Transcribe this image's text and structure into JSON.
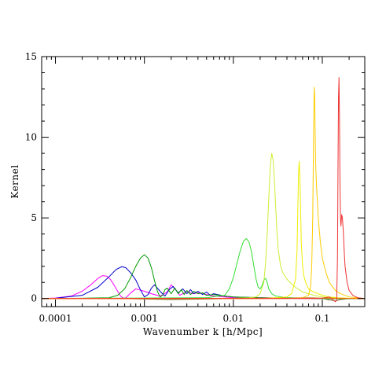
{
  "chart_data": {
    "type": "line",
    "xlabel": "Wavenumber k [h/Mpc]",
    "ylabel": "Kernel",
    "xscale": "log",
    "xlim": [
      7e-05,
      0.3
    ],
    "ylim": [
      -0.5,
      15
    ],
    "grid": false,
    "x_tick_labels": [
      {
        "value": 0.0001,
        "label": "0.0001"
      },
      {
        "value": 0.001,
        "label": "0.001"
      },
      {
        "value": 0.01,
        "label": "0.01"
      },
      {
        "value": 0.1,
        "label": "0.1"
      }
    ],
    "y_tick_labels": [
      {
        "value": 0,
        "label": "0"
      },
      {
        "value": 5,
        "label": "5"
      },
      {
        "value": 10,
        "label": "10"
      },
      {
        "value": 15,
        "label": "15"
      }
    ],
    "series": [
      {
        "color": "#ff00ff",
        "x": [
          7e-05,
          0.0001,
          0.00015,
          0.0002,
          0.00025,
          0.0003,
          0.00034,
          0.00038,
          0.00042,
          0.00046,
          0.0005,
          0.00054,
          0.00058,
          0.00062,
          0.0007,
          0.0008,
          0.001,
          0.0012,
          0.0015,
          0.0018,
          0.002,
          0.0022,
          0.0025,
          0.003,
          0.0035,
          0.004,
          0.005,
          0.006,
          0.008,
          0.01,
          0.02,
          0.05,
          0.1,
          0.3
        ],
        "y": [
          0,
          0.03,
          0.15,
          0.45,
          0.85,
          1.25,
          1.42,
          1.38,
          1.15,
          0.8,
          0.45,
          0.15,
          0.02,
          0.05,
          0.35,
          0.6,
          0.45,
          0.3,
          0.15,
          0.4,
          0.85,
          0.6,
          0.2,
          0.45,
          0.3,
          0.35,
          0.25,
          0.15,
          0.1,
          0.05,
          0.02,
          0.01,
          0,
          0
        ]
      },
      {
        "color": "#0000cc",
        "x": [
          7e-05,
          0.0001,
          0.0002,
          0.0003,
          0.0004,
          0.00048,
          0.00056,
          0.00062,
          0.0007,
          0.0008,
          0.0009,
          0.001,
          0.0011,
          0.0012,
          0.0013,
          0.0015,
          0.0017,
          0.0019,
          0.0021,
          0.0024,
          0.0027,
          0.003,
          0.0033,
          0.0036,
          0.004,
          0.0045,
          0.005,
          0.0055,
          0.006,
          0.007,
          0.008,
          0.01,
          0.02,
          0.05,
          0.1,
          0.3
        ],
        "y": [
          0,
          0.02,
          0.2,
          0.7,
          1.35,
          1.8,
          1.98,
          1.9,
          1.6,
          1.15,
          0.55,
          0.1,
          0.25,
          0.65,
          0.85,
          0.45,
          0.15,
          0.55,
          0.75,
          0.35,
          0.6,
          0.3,
          0.55,
          0.3,
          0.45,
          0.25,
          0.4,
          0.2,
          0.3,
          0.22,
          0.15,
          0.1,
          0.05,
          0.02,
          0,
          0
        ]
      },
      {
        "color": "#009900",
        "x": [
          7e-05,
          0.0002,
          0.0004,
          0.0005,
          0.0006,
          0.0007,
          0.0008,
          0.0009,
          0.001,
          0.0011,
          0.0012,
          0.0013,
          0.0014,
          0.0015,
          0.0016,
          0.0017,
          0.0018,
          0.002,
          0.0022,
          0.0024,
          0.0026,
          0.0028,
          0.003,
          0.0033,
          0.0036,
          0.004,
          0.0045,
          0.005,
          0.006,
          0.008,
          0.01,
          0.02,
          0.05,
          0.1,
          0.3
        ],
        "y": [
          0,
          0.02,
          0.05,
          0.2,
          0.6,
          1.3,
          2.0,
          2.5,
          2.72,
          2.5,
          1.9,
          1.1,
          0.45,
          0.1,
          0.2,
          0.55,
          0.65,
          0.3,
          0.65,
          0.3,
          0.55,
          0.25,
          0.5,
          0.25,
          0.45,
          0.3,
          0.35,
          0.2,
          0.25,
          0.15,
          0.1,
          0.05,
          0.02,
          0,
          0
        ]
      },
      {
        "color": "#6a6a2a",
        "x": [
          7e-05,
          0.0005,
          0.001,
          0.0015,
          0.002,
          0.003,
          0.005,
          0.01,
          0.02,
          0.04,
          0.08,
          0.1,
          0.12,
          0.14,
          0.16,
          0.2,
          0.3
        ],
        "y": [
          0,
          0,
          -0.03,
          -0.05,
          -0.06,
          -0.05,
          -0.03,
          0,
          0.03,
          0.05,
          0.04,
          0,
          -0.08,
          -0.15,
          -0.06,
          0,
          0
        ]
      },
      {
        "color": "#33dd33",
        "x": [
          7e-05,
          0.005,
          0.008,
          0.009,
          0.01,
          0.011,
          0.012,
          0.013,
          0.014,
          0.015,
          0.016,
          0.017,
          0.018,
          0.019,
          0.02,
          0.021,
          0.022,
          0.023,
          0.024,
          0.025,
          0.027,
          0.03,
          0.035,
          0.04,
          0.05,
          0.07,
          0.1,
          0.3
        ],
        "y": [
          0,
          0.05,
          0.2,
          0.6,
          1.3,
          2.2,
          3.0,
          3.55,
          3.72,
          3.5,
          2.9,
          2.0,
          1.2,
          0.7,
          0.6,
          0.8,
          1.15,
          1.25,
          1.0,
          0.6,
          0.3,
          0.15,
          0.1,
          0.05,
          0.03,
          0.01,
          0,
          0
        ]
      },
      {
        "color": "#ccee33",
        "x": [
          7e-05,
          0.01,
          0.015,
          0.018,
          0.02,
          0.022,
          0.023,
          0.024,
          0.025,
          0.026,
          0.027,
          0.028,
          0.029,
          0.03,
          0.031,
          0.032,
          0.034,
          0.036,
          0.04,
          0.045,
          0.05,
          0.06,
          0.07,
          0.08,
          0.1,
          0.15,
          0.3
        ],
        "y": [
          0,
          0.01,
          0.05,
          0.1,
          0.3,
          1.0,
          2.2,
          4.0,
          6.2,
          8.2,
          9.0,
          8.6,
          7.2,
          5.5,
          4.0,
          3.0,
          2.0,
          1.6,
          1.2,
          0.9,
          0.7,
          0.4,
          0.3,
          0.2,
          0.1,
          0.02,
          0
        ]
      },
      {
        "color": "#eeee00",
        "x": [
          7e-05,
          0.02,
          0.03,
          0.04,
          0.045,
          0.05,
          0.052,
          0.053,
          0.054,
          0.055,
          0.056,
          0.057,
          0.058,
          0.06,
          0.062,
          0.065,
          0.07,
          0.08,
          0.1,
          0.12,
          0.15,
          0.2,
          0.3
        ],
        "y": [
          0,
          0,
          0.05,
          0.1,
          0.3,
          1.2,
          3.0,
          5.5,
          7.8,
          8.5,
          7.5,
          5.5,
          3.5,
          2.0,
          1.4,
          1.0,
          0.6,
          0.4,
          0.2,
          0.1,
          0.05,
          0.02,
          0
        ]
      },
      {
        "color": "#ffcc00",
        "x": [
          7e-05,
          0.04,
          0.06,
          0.07,
          0.074,
          0.076,
          0.078,
          0.079,
          0.08,
          0.081,
          0.082,
          0.083,
          0.084,
          0.086,
          0.088,
          0.09,
          0.095,
          0.1,
          0.11,
          0.12,
          0.14,
          0.16,
          0.2,
          0.3
        ],
        "y": [
          0,
          0,
          0.05,
          0.2,
          0.8,
          2.0,
          5.0,
          8.0,
          11.0,
          13.1,
          12.5,
          10.5,
          8.5,
          7.0,
          6.0,
          5.0,
          3.5,
          2.5,
          1.6,
          1.0,
          0.5,
          0.3,
          0.1,
          0
        ]
      },
      {
        "color": "#ff6600",
        "x": [
          7e-05,
          0.05,
          0.1,
          0.15,
          0.2,
          0.25,
          0.3
        ],
        "y": [
          0,
          0.02,
          0.03,
          0.02,
          0.01,
          0,
          0
        ]
      },
      {
        "color": "#ee3333",
        "x": [
          7e-05,
          0.08,
          0.1,
          0.12,
          0.13,
          0.14,
          0.145,
          0.148,
          0.15,
          0.152,
          0.154,
          0.156,
          0.158,
          0.16,
          0.162,
          0.165,
          0.168,
          0.172,
          0.176,
          0.18,
          0.19,
          0.2,
          0.22,
          0.25,
          0.3
        ],
        "y": [
          0,
          0,
          0.02,
          0.1,
          -0.05,
          -0.2,
          -0.1,
          2.5,
          8.0,
          12.5,
          13.7,
          11.0,
          7.0,
          5.0,
          4.5,
          5.2,
          5.0,
          4.2,
          3.0,
          2.0,
          1.0,
          0.5,
          0.2,
          0.05,
          0
        ]
      }
    ]
  }
}
